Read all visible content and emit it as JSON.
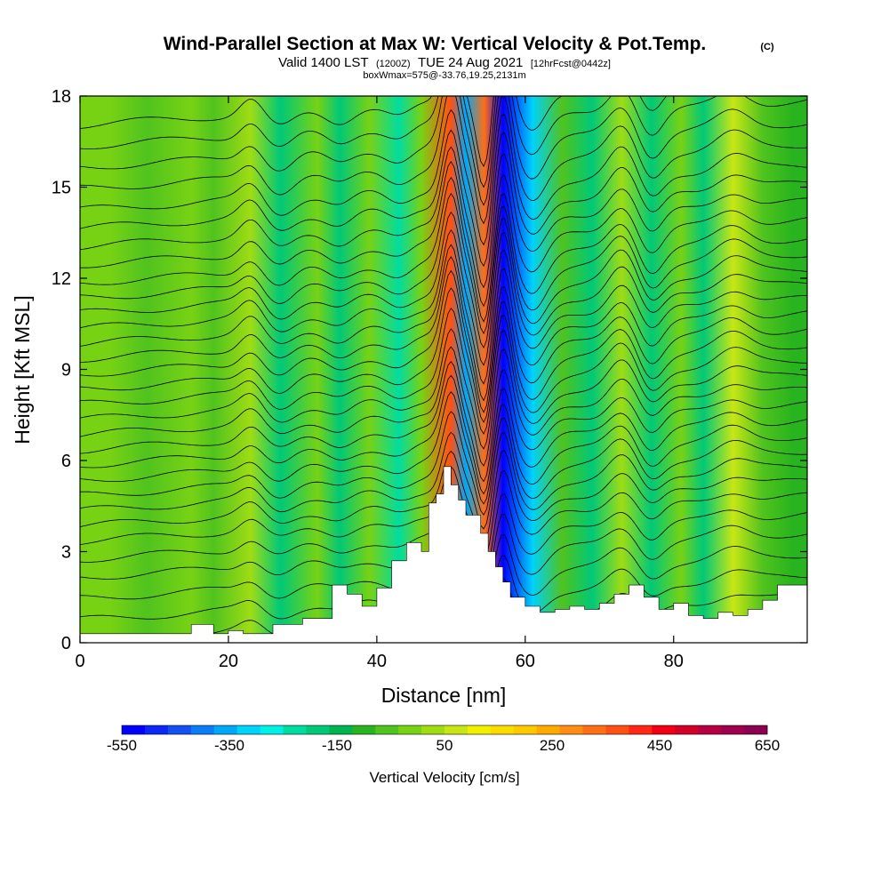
{
  "chart_data": {
    "type": "heatmap",
    "title": "Wind-Parallel Section at Max W: Vertical Velocity & Pot.Temp.",
    "title_mark": "(C)",
    "subtitle_main": "Valid 1400 LST",
    "subtitle_utc": "(1200Z)",
    "subtitle_date": "TUE 24 Aug 2021",
    "subtitle_fcst": "[12hrFcst@0442z]",
    "box_info": "boxWmax=575@-33.76,19.25,2131m",
    "xlabel": "Distance [nm]",
    "ylabel": "Height [Kft MSL]",
    "xlim": [
      0,
      98
    ],
    "ylim": [
      0,
      18
    ],
    "xticks": [
      0,
      20,
      40,
      60,
      80
    ],
    "yticks": [
      0,
      3,
      6,
      9,
      12,
      15,
      18
    ],
    "colorbar": {
      "label": "Vertical Velocity [cm/s]",
      "min": -550,
      "max": 650,
      "step": 50,
      "tick_values": [
        -550,
        -350,
        -150,
        50,
        250,
        450,
        650
      ],
      "tick_labels": [
        "-550",
        "-350",
        "-150",
        "50",
        "250",
        "450",
        "650"
      ],
      "colors": [
        "#0000ff",
        "#0c28f5",
        "#1450f0",
        "#0a7cf5",
        "#00a8f5",
        "#00d2fa",
        "#00f0e6",
        "#00dca0",
        "#00c878",
        "#00b450",
        "#28b41e",
        "#50c31e",
        "#78d214",
        "#a0dc14",
        "#c8e614",
        "#f0f000",
        "#fadc00",
        "#ffc800",
        "#ffaa00",
        "#ff8c14",
        "#ff6e14",
        "#ff5014",
        "#ff2814",
        "#f00014",
        "#d20028",
        "#b40041",
        "#a0004b",
        "#8c0050"
      ]
    },
    "terrain_profile": {
      "x_nm": [
        0,
        12,
        15,
        18,
        20,
        22,
        26,
        30,
        34,
        36,
        38,
        40,
        42,
        44,
        46,
        47,
        48,
        49,
        50,
        51,
        52,
        54,
        55,
        56,
        57,
        58,
        60,
        62,
        64,
        66,
        68,
        70,
        72,
        74,
        76,
        78,
        80,
        82,
        84,
        86,
        88,
        90,
        92,
        94,
        96,
        98
      ],
      "height_kft": [
        0.3,
        0.3,
        0.6,
        0.3,
        0.4,
        0.3,
        0.6,
        0.8,
        1.9,
        1.6,
        1.2,
        1.8,
        2.7,
        3.3,
        3.0,
        4.6,
        4.9,
        5.8,
        5.2,
        4.7,
        4.2,
        3.6,
        3.0,
        2.5,
        2.0,
        1.5,
        1.2,
        1.0,
        1.1,
        1.2,
        1.1,
        1.3,
        1.6,
        1.9,
        1.5,
        1.1,
        1.3,
        0.9,
        0.8,
        1.0,
        0.9,
        1.1,
        1.4,
        1.9,
        1.9,
        1.9
      ]
    },
    "vertical_velocity_bands": [
      {
        "x_nm": 4,
        "w_cms": 50
      },
      {
        "x_nm": 9,
        "w_cms": 0
      },
      {
        "x_nm": 15,
        "w_cms": 60
      },
      {
        "x_nm": 18,
        "w_cms": 20
      },
      {
        "x_nm": 23,
        "w_cms": 130
      },
      {
        "x_nm": 27,
        "w_cms": -120
      },
      {
        "x_nm": 32,
        "w_cms": 60
      },
      {
        "x_nm": 35,
        "w_cms": -140
      },
      {
        "x_nm": 39,
        "w_cms": 50
      },
      {
        "x_nm": 43,
        "w_cms": -170
      },
      {
        "x_nm": 46,
        "w_cms": 60
      },
      {
        "x_nm": 50,
        "w_cms": 500
      },
      {
        "x_nm": 52,
        "w_cms": -350
      },
      {
        "x_nm": 54.5,
        "w_cms": 450
      },
      {
        "x_nm": 57,
        "w_cms": -520
      },
      {
        "x_nm": 61,
        "w_cms": -280
      },
      {
        "x_nm": 65,
        "w_cms": 40
      },
      {
        "x_nm": 69,
        "w_cms": -130
      },
      {
        "x_nm": 73,
        "w_cms": 120
      },
      {
        "x_nm": 77,
        "w_cms": -150
      },
      {
        "x_nm": 81,
        "w_cms": 60
      },
      {
        "x_nm": 84,
        "w_cms": -120
      },
      {
        "x_nm": 88,
        "w_cms": 180
      },
      {
        "x_nm": 92,
        "w_cms": 10
      },
      {
        "x_nm": 96,
        "w_cms": -20
      }
    ],
    "isentrope_base_heights_kft": [
      0.8,
      1.5,
      2.2,
      2.9,
      3.5,
      4.1,
      4.6,
      5.1,
      5.6,
      6.1,
      6.6,
      7.1,
      7.6,
      8.1,
      8.6,
      9.1,
      9.6,
      10.1,
      10.6,
      11.1,
      11.6,
      12.1,
      12.6,
      13.2,
      13.8,
      14.4,
      15.0,
      15.7,
      16.4,
      17.1,
      17.8
    ]
  }
}
